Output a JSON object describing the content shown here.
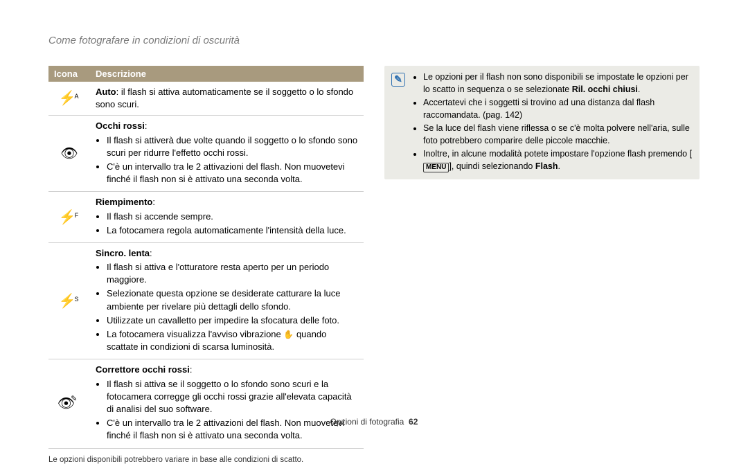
{
  "page_title": "Come fotografare in condizioni di oscurità",
  "table": {
    "headers": {
      "icon": "Icona",
      "desc": "Descrizione"
    },
    "rows": [
      {
        "icon_char": "⚡",
        "icon_sup": "A",
        "desc_lead_bold": "Auto",
        "desc_lead_rest": ": il flash si attiva automaticamente se il soggetto o lo sfondo sono scuri."
      },
      {
        "icon_char": "👁",
        "title_bold": "Occhi rossi",
        "title_suffix": ":",
        "bullets": [
          "Il flash si attiverà due volte quando il soggetto o lo sfondo sono scuri per ridurre l'effetto occhi rossi.",
          "C'è un intervallo tra le 2 attivazioni del flash. Non muovetevi finché il flash non si è attivato una seconda volta."
        ]
      },
      {
        "icon_char": "⚡",
        "icon_sup": "F",
        "title_bold": "Riempimento",
        "title_suffix": ":",
        "bullets": [
          "Il flash si accende sempre.",
          "La fotocamera regola automaticamente l'intensità della luce."
        ]
      },
      {
        "icon_char": "⚡",
        "icon_sup": "S",
        "title_bold": "Sincro. lenta",
        "title_suffix": ":",
        "bullets": [
          "Il flash si attiva e l'otturatore resta aperto per un periodo maggiore.",
          "Selezionate questa opzione se desiderate catturare la luce ambiente per rivelare più dettagli dello sfondo.",
          "Utilizzate un cavalletto per impedire la sfocatura delle foto."
        ],
        "last_bullet_prefix": "La fotocamera visualizza l'avviso vibrazione ",
        "last_bullet_vib": "✋",
        "last_bullet_suffix": " quando scattate in condizioni di scarsa luminosità."
      },
      {
        "icon_char": "👁",
        "icon_extra": "✎",
        "title_bold": "Correttore occhi rossi",
        "title_suffix": ":",
        "bullets": [
          "Il flash si attiva se il soggetto o lo sfondo sono scuri e la fotocamera corregge gli occhi rossi grazie all'elevata capacità di analisi del suo software.",
          "C'è un intervallo tra le 2 attivazioni del flash. Non muovetevi finché il flash non si è attivato una seconda volta."
        ]
      }
    ]
  },
  "footnote": "Le opzioni disponibili potrebbero variare in base alle condizioni di scatto.",
  "notebox": {
    "icon": "✎",
    "items": [
      {
        "pre": "Le opzioni per il flash non sono disponibili se impostate le opzioni per lo scatto in sequenza o se selezionate ",
        "bold": "Ril. occhi chiusi",
        "post": "."
      },
      {
        "pre": "Accertatevi che i soggetti si trovino ad una distanza dal flash raccomandata. (pag. 142)"
      },
      {
        "pre": "Se la luce del flash viene riflessa o se c'è molta polvere nell'aria, sulle foto potrebbero comparire delle piccole macchie."
      },
      {
        "pre": "Inoltre, in alcune modalità potete impostare l'opzione flash premendo [",
        "menu": "MENU",
        "mid": "], quindi selezionando ",
        "bold": "Flash",
        "post": "."
      }
    ]
  },
  "footer": {
    "section": "Opzioni di fotografia",
    "page": "62"
  },
  "colors": {
    "header_bg": "#a89a7e",
    "notebox_bg": "#ebebe6",
    "note_icon_color": "#2d6fb0",
    "title_gray": "#7a7a7a",
    "row_border": "#d0d0d0"
  }
}
